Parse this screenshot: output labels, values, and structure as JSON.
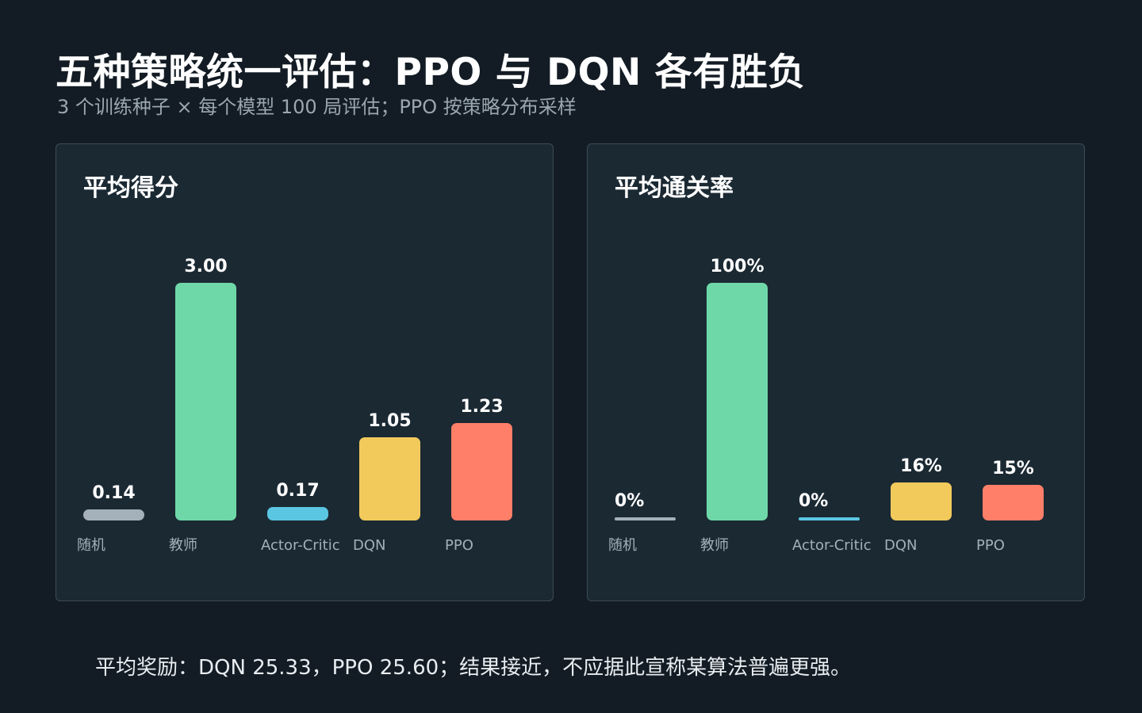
{
  "header": {
    "title": "五种策略统一评估：PPO 与 DQN 各有胜负",
    "subtitle": "3 个训练种子 × 每个模型 100 局评估；PPO 按策略分布采样"
  },
  "footer": {
    "note": "平均奖励：DQN 25.33，PPO 25.60；结果接近，不应据此宣称某算法普遍更强。"
  },
  "colors": {
    "随机": "#a5b1ba",
    "教师": "#6fd8a8",
    "Actor-Critic": "#5bc6e2",
    "DQN": "#f2ca5c",
    "PPO": "#ff7f68"
  },
  "chart_data": [
    {
      "type": "bar",
      "title": "平均得分",
      "categories": [
        "随机",
        "教师",
        "Actor-Critic",
        "DQN",
        "PPO"
      ],
      "values": [
        0.14,
        3.0,
        0.17,
        1.05,
        1.23
      ],
      "value_labels": [
        "0.14",
        "3.00",
        "0.17",
        "1.05",
        "1.23"
      ],
      "ylim": [
        0,
        3.0
      ],
      "grid": false
    },
    {
      "type": "bar",
      "title": "平均通关率",
      "categories": [
        "随机",
        "教师",
        "Actor-Critic",
        "DQN",
        "PPO"
      ],
      "values": [
        0,
        100,
        0,
        16,
        15
      ],
      "value_labels": [
        "0%",
        "100%",
        "0%",
        "16%",
        "15%"
      ],
      "ylim": [
        0,
        100
      ],
      "grid": false
    }
  ]
}
